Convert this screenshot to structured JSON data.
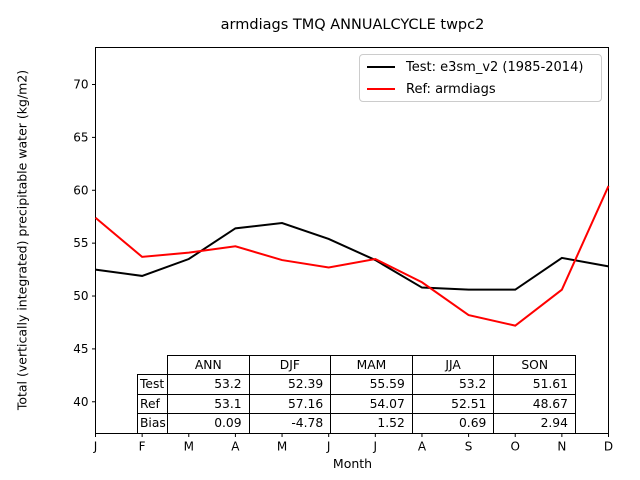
{
  "chart_data": {
    "type": "line",
    "title": "armdiags TMQ ANNUALCYCLE twpc2",
    "xlabel": "Month",
    "ylabel": "Total (vertically integrated) precipitable water (kg/m2)",
    "x_tick_labels": [
      "J",
      "F",
      "M",
      "A",
      "M",
      "J",
      "J",
      "A",
      "S",
      "O",
      "N",
      "D"
    ],
    "yticks": [
      40,
      45,
      50,
      55,
      60,
      65,
      70
    ],
    "ylim": [
      37,
      73.5
    ],
    "grid": false,
    "legend_position": "upper right",
    "legend_border_color": "#cccccc",
    "axes_color": "#000000",
    "series": [
      {
        "name": "Test: e3sm_v2 (1985-2014)",
        "color": "#000000",
        "values": [
          52.5,
          51.9,
          53.5,
          56.4,
          56.9,
          55.4,
          53.4,
          50.8,
          50.6,
          50.6,
          53.6,
          52.8
        ]
      },
      {
        "name": "Ref: armdiags",
        "color": "#ff0000",
        "values": [
          57.4,
          53.7,
          54.1,
          54.7,
          53.4,
          52.7,
          53.5,
          51.3,
          48.2,
          47.2,
          50.6,
          60.4
        ]
      }
    ]
  },
  "stats_table": {
    "col_headers": [
      "ANN",
      "DJF",
      "MAM",
      "JJA",
      "SON"
    ],
    "rows": [
      {
        "label": "Test",
        "values": [
          "53.2",
          "52.39",
          "55.59",
          "53.2",
          "51.61"
        ]
      },
      {
        "label": "Ref",
        "values": [
          "53.1",
          "57.16",
          "54.07",
          "52.51",
          "48.67"
        ]
      },
      {
        "label": "Bias",
        "values": [
          "0.09",
          "-4.78",
          "1.52",
          "0.69",
          "2.94"
        ]
      }
    ]
  }
}
